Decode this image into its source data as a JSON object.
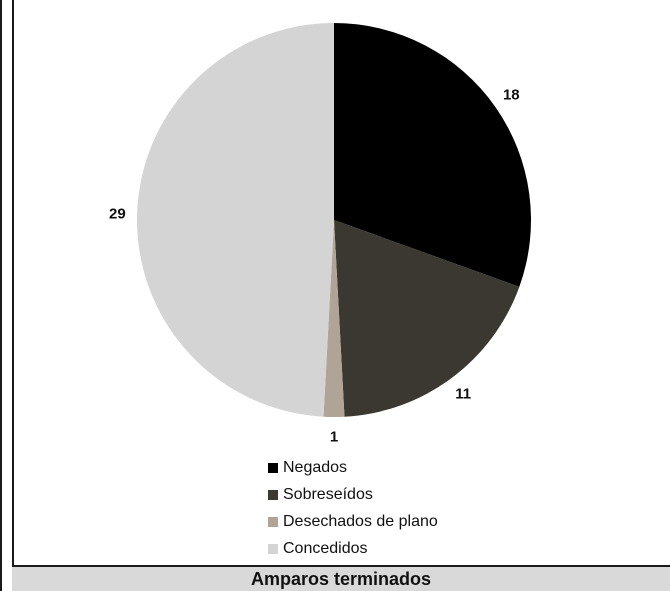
{
  "chart_data": {
    "type": "pie",
    "title": "",
    "slices": [
      {
        "label": "Negados",
        "value": 18,
        "color": "#000000"
      },
      {
        "label": "Sobreseídos",
        "value": 11,
        "color": "#3b3832"
      },
      {
        "label": "Desechados de plano",
        "value": 1,
        "color": "#b0a496"
      },
      {
        "label": "Concedidos",
        "value": 29,
        "color": "#d4d4d4"
      }
    ],
    "legend": "bottom"
  },
  "footer": {
    "label": "Amparos terminados"
  }
}
